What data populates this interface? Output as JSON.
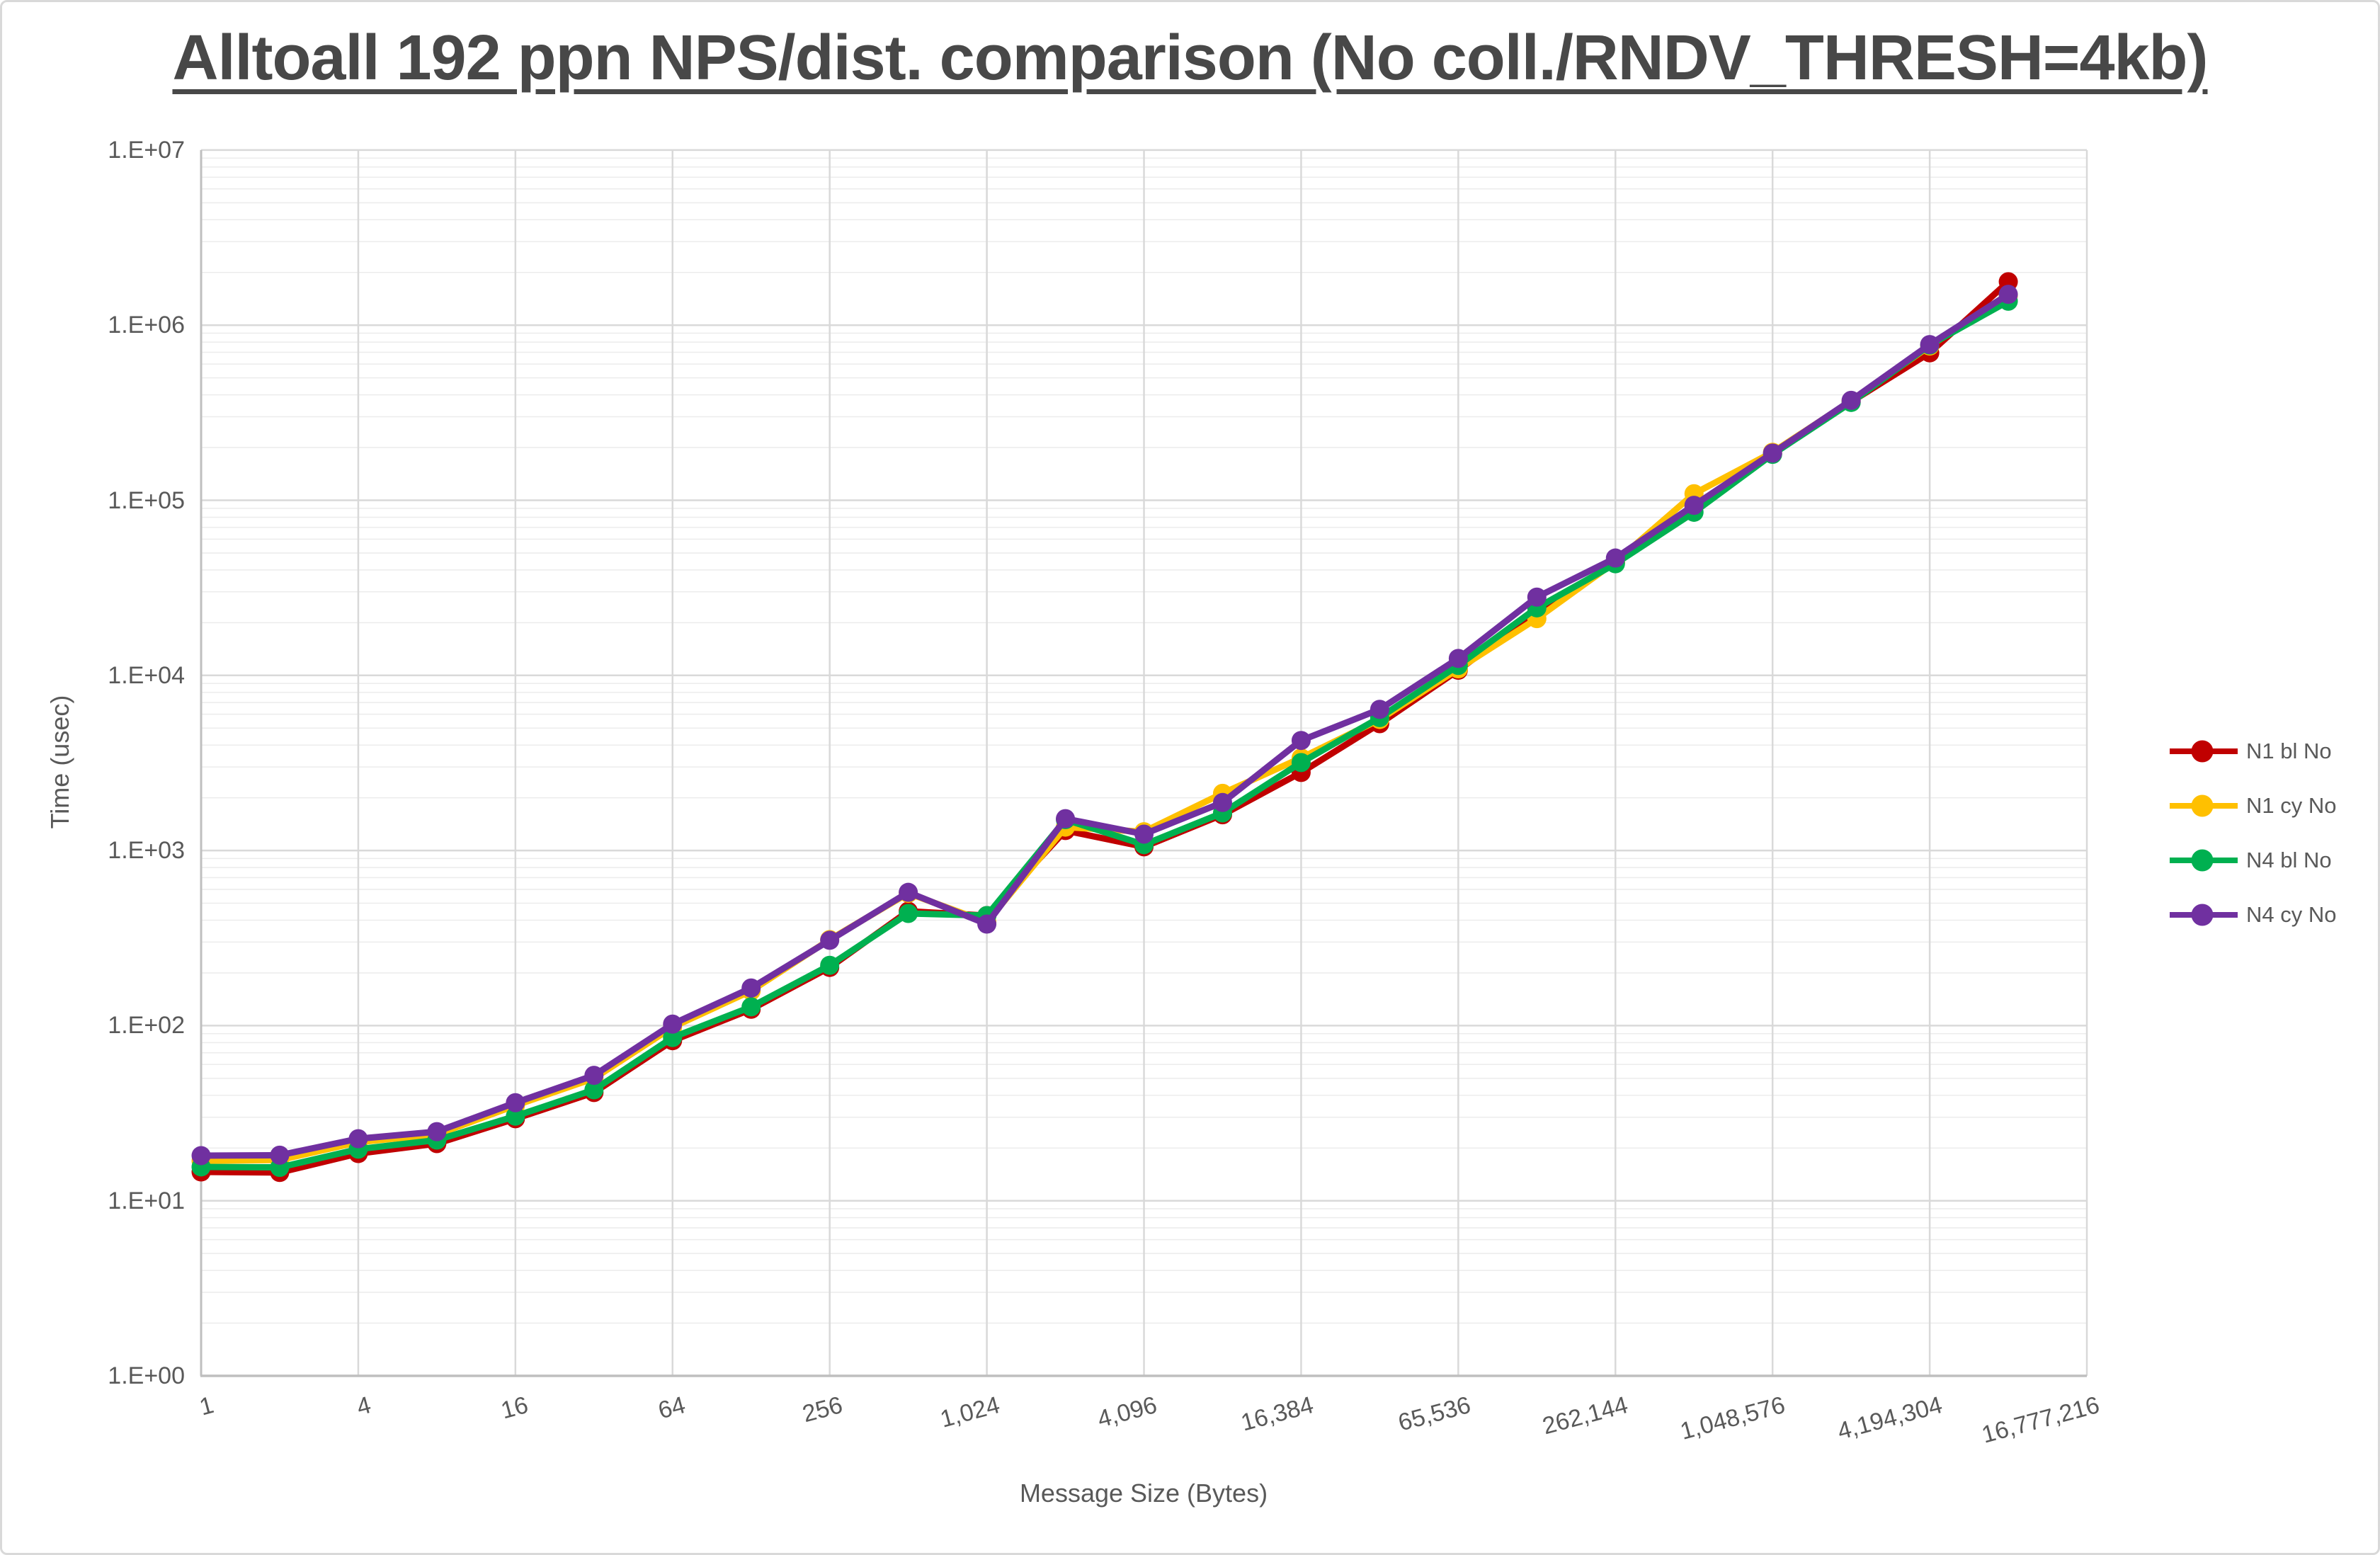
{
  "title": "Alltoall 192 ppn NPS/dist. comparison (No coll./RNDV_THRESH=4kb)",
  "axes": {
    "x_label": "Message Size (Bytes)",
    "y_label": "Time (usec)",
    "x_tick_labels": [
      "1",
      "4",
      "16",
      "64",
      "256",
      "1,024",
      "4,096",
      "16,384",
      "65,536",
      "262,144",
      "1,048,576",
      "4,194,304",
      "16,777,216"
    ],
    "y_tick_labels": [
      "1.E+00",
      "1.E+01",
      "1.E+02",
      "1.E+03",
      "1.E+04",
      "1.E+05",
      "1.E+06",
      "1.E+07"
    ]
  },
  "chart_data": {
    "type": "line",
    "title": "Alltoall 192 ppn NPS/dist. comparison (No coll./RNDV_THRESH=4kb)",
    "xlabel": "Message Size (Bytes)",
    "ylabel": "Time (usec)",
    "x_scale": "log2",
    "y_scale": "log10",
    "xlim": [
      1,
      16777216
    ],
    "ylim": [
      1,
      10000000
    ],
    "grid": true,
    "legend_position": "right",
    "x": [
      1,
      2,
      4,
      8,
      16,
      32,
      64,
      128,
      256,
      512,
      1024,
      2048,
      4096,
      8192,
      16384,
      32768,
      65536,
      131072,
      262144,
      524288,
      1048576,
      2097152,
      4194304,
      8388608
    ],
    "series": [
      {
        "name": "N1 bl No",
        "color": "#C00000",
        "values": [
          14.6,
          14.5,
          18.6,
          21.2,
          29.4,
          41.5,
          82,
          124,
          215,
          450,
          425,
          1300,
          1050,
          1600,
          2790,
          5300,
          10700,
          23000,
          44000,
          92000,
          184000,
          365000,
          695000,
          1770000
        ]
      },
      {
        "name": "N1 cy No",
        "color": "#FFC000",
        "values": [
          16.9,
          17.1,
          21.6,
          23.9,
          35,
          50,
          98,
          158,
          310,
          570,
          390,
          1360,
          1280,
          2120,
          3380,
          5600,
          10900,
          21100,
          44500,
          109000,
          188000,
          370000,
          760000,
          1480000
        ]
      },
      {
        "name": "N4 bl No",
        "color": "#00B050",
        "values": [
          15.6,
          15.5,
          19.7,
          22.2,
          30.4,
          43,
          85.5,
          128,
          221,
          437,
          425,
          1500,
          1080,
          1640,
          3180,
          5740,
          11400,
          24300,
          43400,
          85400,
          183000,
          362000,
          770000,
          1370000
        ]
      },
      {
        "name": "N4 cy No",
        "color": "#7030A0",
        "values": [
          18.1,
          18.2,
          22.6,
          24.8,
          36.3,
          52,
          102,
          164,
          307,
          577,
          380,
          1520,
          1240,
          1880,
          4250,
          6400,
          12500,
          28000,
          46800,
          93600,
          186000,
          372000,
          775000,
          1500000
        ]
      }
    ]
  },
  "colors": {
    "text": "#595959",
    "title_text": "#484848",
    "grid_major": "#D9D9D9",
    "grid_minor": "#ECECEC",
    "axis_line": "#BFBFBF",
    "background": "#FFFFFF"
  }
}
